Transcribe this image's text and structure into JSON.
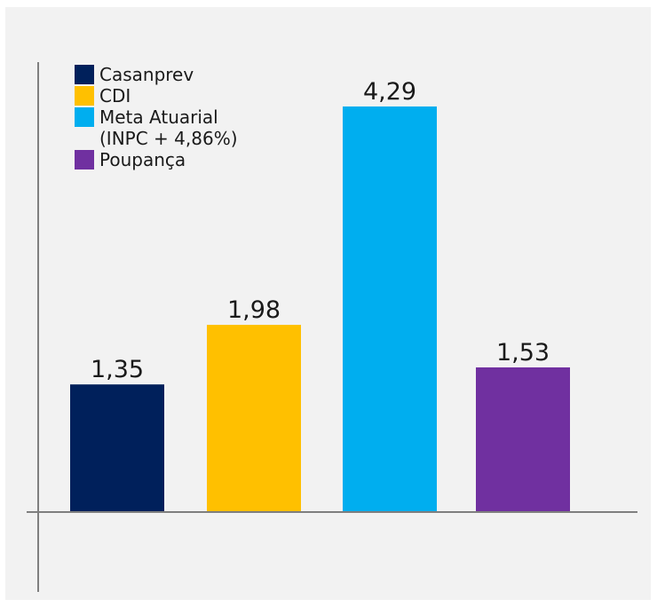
{
  "chart_data": {
    "type": "bar",
    "categories": [
      "Casanprev",
      "CDI",
      "Meta Atuarial\n(INPC + 4,86%)",
      "Poupança"
    ],
    "values": [
      1.35,
      1.98,
      4.29,
      1.53
    ],
    "value_labels": [
      "1,35",
      "1,98",
      "4,29",
      "1,53"
    ],
    "colors": [
      "#00205b",
      "#ffc000",
      "#00aeef",
      "#7030a0"
    ],
    "ylim": [
      0,
      4.29
    ],
    "grid": false,
    "legend_position": "top-left",
    "title": "",
    "xlabel": "",
    "ylabel": ""
  },
  "legend": {
    "items": [
      {
        "label": "Casanprev",
        "color": "#00205b"
      },
      {
        "label": "CDI",
        "color": "#ffc000"
      },
      {
        "label": "Meta Atuarial\n(INPC + 4,86%)",
        "color": "#00aeef"
      },
      {
        "label": "Poupança",
        "color": "#7030a0"
      }
    ]
  },
  "style": {
    "background": "#f2f2f2",
    "axis_color": "#7f7f7f",
    "label_color": "#1a1a1a"
  }
}
